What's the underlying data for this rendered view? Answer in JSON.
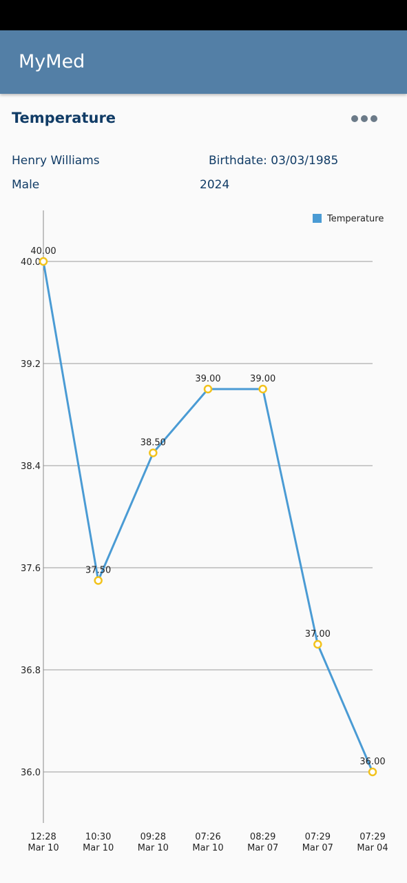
{
  "app_bar": {
    "title": "MyMed"
  },
  "header": {
    "title": "Temperature"
  },
  "patient": {
    "name": "Henry Williams",
    "birthdate": "Birthdate: 03/03/1985",
    "sex": "Male",
    "year": "2024"
  },
  "chart_data": {
    "type": "line",
    "categories": [
      "12:28\nMar 10",
      "10:30\nMar 10",
      "09:28\nMar 10",
      "07:26\nMar 10",
      "08:29\nMar 07",
      "07:29\nMar 07",
      "07:29\nMar 04"
    ],
    "series": [
      {
        "name": "Temperature",
        "color": "#4a9bd4",
        "values": [
          40,
          37.5,
          38.5,
          39,
          39,
          37,
          36
        ],
        "value_labels": [
          "40.00",
          "37.50",
          "38.50",
          "39.00",
          "39.00",
          "37.00",
          "36.00"
        ]
      }
    ],
    "marker_color": "#f2c21b",
    "ylim": [
      35.6,
      40.4
    ],
    "yticks": [
      {
        "value": 36,
        "label": "36.0"
      },
      36.8,
      37.6,
      38.4,
      39.2,
      {
        "value": 40,
        "label": "40.0"
      }
    ],
    "grid": true,
    "legend": "top-right"
  }
}
